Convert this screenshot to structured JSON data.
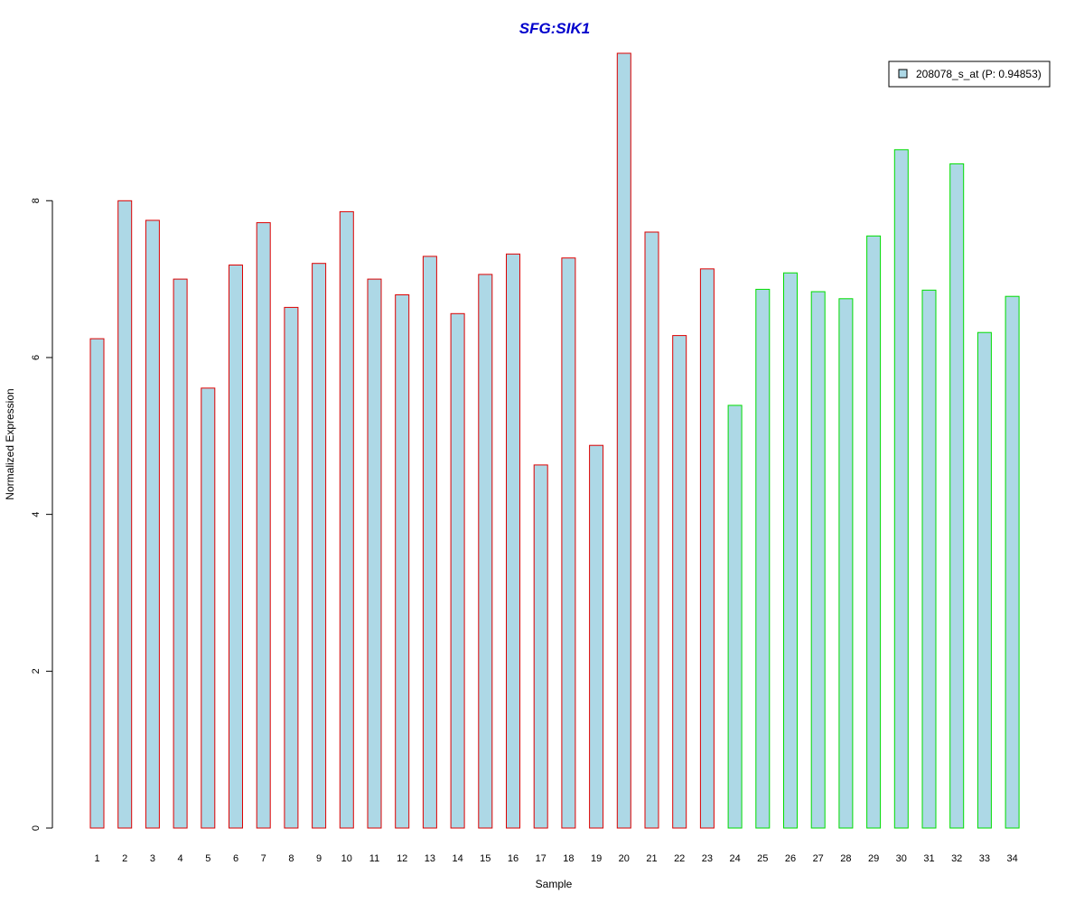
{
  "chart_data": {
    "type": "bar",
    "title": "SFG:SIK1",
    "xlabel": "Sample",
    "ylabel": "Normalized Expression",
    "categories": [
      "1",
      "2",
      "3",
      "4",
      "5",
      "6",
      "7",
      "8",
      "9",
      "10",
      "11",
      "12",
      "13",
      "14",
      "15",
      "16",
      "17",
      "18",
      "19",
      "20",
      "21",
      "22",
      "23",
      "24",
      "25",
      "26",
      "27",
      "28",
      "29",
      "30",
      "31",
      "32",
      "33",
      "34"
    ],
    "series": [
      {
        "name": "208078_s_at (P: 0.94853)",
        "values": [
          6.24,
          8.0,
          7.75,
          7.0,
          5.61,
          7.18,
          7.72,
          6.64,
          7.2,
          7.86,
          7.0,
          6.8,
          7.29,
          6.56,
          7.06,
          7.32,
          4.63,
          7.27,
          4.88,
          9.88,
          7.6,
          6.28,
          7.13,
          5.39,
          6.87,
          7.08,
          6.84,
          6.75,
          7.55,
          8.65,
          6.86,
          8.47,
          6.32,
          6.78
        ]
      }
    ],
    "group_of_sample": [
      "a",
      "a",
      "a",
      "a",
      "a",
      "a",
      "a",
      "a",
      "a",
      "a",
      "a",
      "a",
      "a",
      "a",
      "a",
      "a",
      "a",
      "a",
      "a",
      "a",
      "a",
      "a",
      "a",
      "b",
      "b",
      "b",
      "b",
      "b",
      "b",
      "b",
      "b",
      "b",
      "b",
      "b"
    ],
    "group_border_colors": {
      "a": "#dd0000",
      "b": "#00dd00"
    },
    "fill_color": "#add8e6",
    "yticks": [
      0,
      2,
      4,
      6,
      8
    ],
    "ylim": [
      0,
      9.88
    ],
    "grid": false,
    "legend_position": "top-right"
  }
}
